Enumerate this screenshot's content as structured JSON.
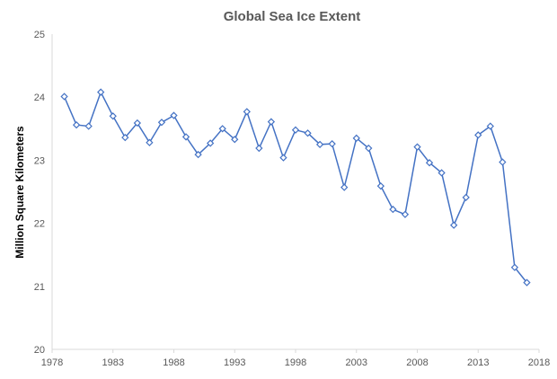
{
  "chart_data": {
    "type": "line",
    "title": "Global Sea Ice Extent",
    "xlabel": "",
    "ylabel": "Million Square Kilometers",
    "xlim": [
      1978,
      2018
    ],
    "ylim": [
      20,
      25
    ],
    "xticks": [
      1978,
      1983,
      1988,
      1993,
      1998,
      2003,
      2008,
      2013,
      2018
    ],
    "yticks": [
      20,
      21,
      22,
      23,
      24,
      25
    ],
    "grid": false,
    "legend": "none",
    "marker": "diamond",
    "color": "#4472C4",
    "x": [
      1979,
      1980,
      1981,
      1982,
      1983,
      1984,
      1985,
      1986,
      1987,
      1988,
      1989,
      1990,
      1991,
      1992,
      1993,
      1994,
      1995,
      1996,
      1997,
      1998,
      1999,
      2000,
      2001,
      2002,
      2003,
      2004,
      2005,
      2006,
      2007,
      2008,
      2009,
      2010,
      2011,
      2012,
      2013,
      2014,
      2015,
      2016,
      2017
    ],
    "y": [
      24.01,
      23.56,
      23.54,
      24.08,
      23.7,
      23.36,
      23.59,
      23.28,
      23.6,
      23.71,
      23.37,
      23.09,
      23.27,
      23.5,
      23.33,
      23.77,
      23.19,
      23.61,
      23.04,
      23.48,
      23.43,
      23.25,
      23.26,
      22.57,
      23.35,
      23.19,
      22.59,
      22.22,
      22.14,
      23.21,
      22.96,
      22.8,
      21.97,
      22.41,
      23.4,
      23.54,
      22.97,
      21.3,
      21.06
    ]
  }
}
